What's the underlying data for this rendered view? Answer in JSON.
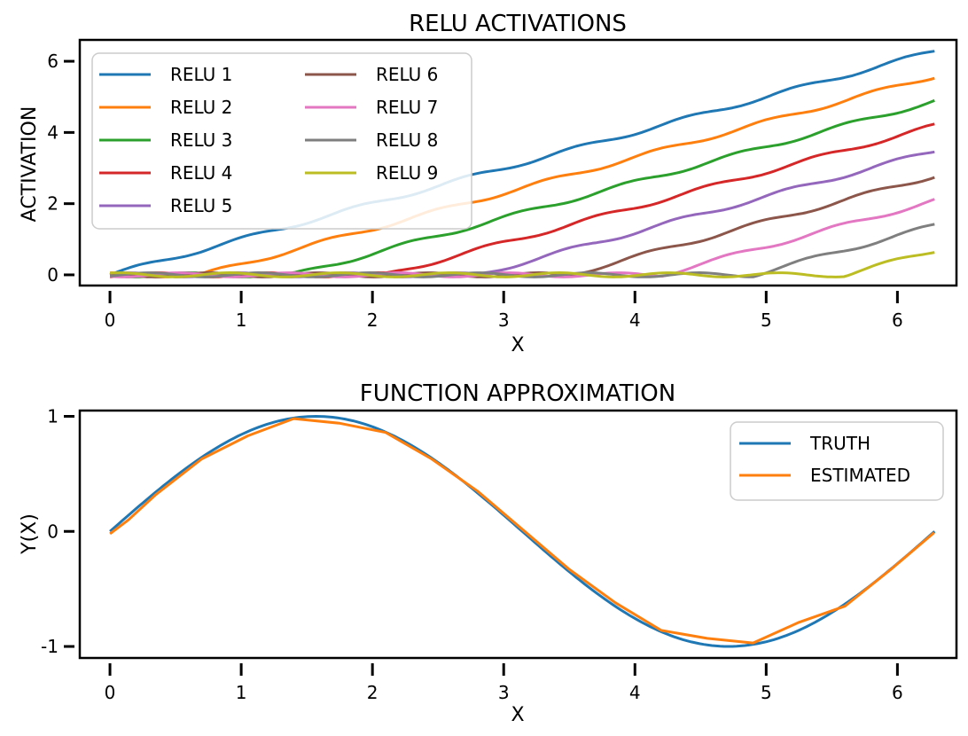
{
  "chart_data": [
    {
      "type": "line",
      "title": "RELU ACTIVATIONS",
      "xlabel": "X",
      "ylabel": "ACTIVATION",
      "xlim": [
        -0.23,
        6.45
      ],
      "ylim": [
        -0.3,
        6.6
      ],
      "xticks": [
        "0",
        "1",
        "2",
        "3",
        "4",
        "5",
        "6"
      ],
      "yticks": [
        "0",
        "2",
        "4",
        "6"
      ],
      "grid": false,
      "legend_placement": "top-left",
      "legend_columns": 2,
      "x_range": [
        0,
        6.2832
      ],
      "series": [
        {
          "name": "RELU 1",
          "color": "#1f77b4",
          "offset": 0.0
        },
        {
          "name": "RELU 2",
          "color": "#ff7f0e",
          "offset": 0.7
        },
        {
          "name": "RELU 3",
          "color": "#2ca02c",
          "offset": 1.4
        },
        {
          "name": "RELU 4",
          "color": "#d62728",
          "offset": 2.1
        },
        {
          "name": "RELU 5",
          "color": "#9467bd",
          "offset": 2.8
        },
        {
          "name": "RELU 6",
          "color": "#8c564b",
          "offset": 3.5
        },
        {
          "name": "RELU 7",
          "color": "#e377c2",
          "offset": 4.2
        },
        {
          "name": "RELU 8",
          "color": "#7f7f7f",
          "offset": 4.9
        },
        {
          "name": "RELU 9",
          "color": "#bcbd22",
          "offset": 5.6
        }
      ]
    },
    {
      "type": "line",
      "title": "FUNCTION APPROXIMATION",
      "xlabel": "X",
      "ylabel": "Y(X)",
      "xlim": [
        -0.23,
        6.45
      ],
      "ylim": [
        -1.1,
        1.05
      ],
      "xticks": [
        "0",
        "1",
        "2",
        "3",
        "4",
        "5",
        "6"
      ],
      "yticks": [
        "-1",
        "0",
        "1"
      ],
      "grid": false,
      "legend_placement": "top-right",
      "series": [
        {
          "name": "TRUTH",
          "color": "#1f77b4",
          "function": "sin(x)"
        },
        {
          "name": "ESTIMATED",
          "color": "#ff7f0e",
          "x": [
            0,
            0.14,
            0.35,
            0.7,
            1.05,
            1.4,
            1.75,
            2.1,
            2.45,
            2.8,
            3.14,
            3.5,
            3.85,
            4.2,
            4.55,
            4.9,
            5.25,
            5.6,
            5.95,
            6.28
          ],
          "y": [
            -0.02,
            0.1,
            0.32,
            0.63,
            0.83,
            0.98,
            0.94,
            0.86,
            0.63,
            0.35,
            0.02,
            -0.33,
            -0.62,
            -0.86,
            -0.93,
            -0.97,
            -0.79,
            -0.65,
            -0.33,
            -0.01
          ]
        }
      ]
    }
  ]
}
